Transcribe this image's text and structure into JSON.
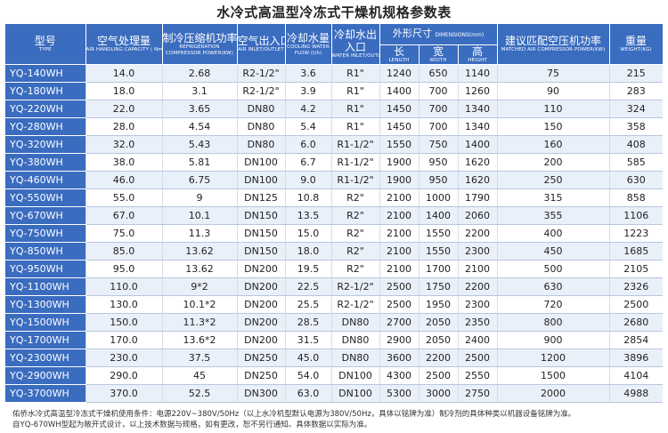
{
  "title": "水冷式高温型冷冻式干燥机规格参数表",
  "headers": {
    "model": {
      "cn": "型号",
      "en": "TYPE"
    },
    "capacity": {
      "cn": "空气处理量",
      "en": "AIR HANDLING CAPACITY ( Nm³/min)"
    },
    "power": {
      "cn": "制冷压缩机功率",
      "en": "REFRIGERATION COMPRESSOR POWER(KW)"
    },
    "air_inlet": {
      "cn": "空气出入口",
      "en": "AIR INLET/OUTLET"
    },
    "cooling_flow": {
      "cn": "冷却水量",
      "en": "COOLING WATER FLOW (t/h)"
    },
    "water_inlet": {
      "cn": "冷却水出入口",
      "en": "WATER INLET/OUTLET"
    },
    "dimensions": {
      "cn": "外形尺寸",
      "en": "DIMENSIONS(mm)"
    },
    "length": {
      "cn": "长",
      "en": "LENGTH"
    },
    "width": {
      "cn": "宽",
      "en": "WIDTH"
    },
    "height": {
      "cn": "高",
      "en": "HEIGHT"
    },
    "matched_power": {
      "cn": "建议匹配空压机功率",
      "en": "MATCHED AIR COMPRESSOR POWER(KW)"
    },
    "weight": {
      "cn": "重量",
      "en": "WEIGHT(KG)"
    }
  },
  "rows": [
    [
      "YQ-140WH",
      "14.0",
      "2.68",
      "R2-1/2\"",
      "3.6",
      "R1\"",
      "1240",
      "650",
      "1140",
      "75",
      "215"
    ],
    [
      "YQ-180WH",
      "18.0",
      "3.1",
      "R2-1/2\"",
      "3.9",
      "R1\"",
      "1400",
      "700",
      "1260",
      "90",
      "283"
    ],
    [
      "YQ-220WH",
      "22.0",
      "3.65",
      "DN80",
      "4.2",
      "R1\"",
      "1450",
      "700",
      "1340",
      "110",
      "324"
    ],
    [
      "YQ-280WH",
      "28.0",
      "4.54",
      "DN80",
      "5.4",
      "R1\"",
      "1450",
      "700",
      "1340",
      "150",
      "358"
    ],
    [
      "YQ-320WH",
      "32.0",
      "5.43",
      "DN80",
      "6.0",
      "R1-1/2\"",
      "1550",
      "750",
      "1400",
      "160",
      "408"
    ],
    [
      "YQ-380WH",
      "38.0",
      "5.81",
      "DN100",
      "6.7",
      "R1-1/2\"",
      "1900",
      "950",
      "1620",
      "200",
      "585"
    ],
    [
      "YQ-460WH",
      "46.0",
      "6.75",
      "DN100",
      "9.0",
      "R1-1/2\"",
      "1900",
      "950",
      "1620",
      "250",
      "630"
    ],
    [
      "YQ-550WH",
      "55.0",
      "9",
      "DN125",
      "10.8",
      "R2\"",
      "2100",
      "1000",
      "1790",
      "315",
      "858"
    ],
    [
      "YQ-670WH",
      "67.0",
      "10.1",
      "DN150",
      "13.5",
      "R2\"",
      "2100",
      "1400",
      "2060",
      "355",
      "1106"
    ],
    [
      "YQ-750WH",
      "75.0",
      "11.3",
      "DN150",
      "15.0",
      "R2\"",
      "2100",
      "1550",
      "2200",
      "400",
      "1223"
    ],
    [
      "YQ-850WH",
      "85.0",
      "13.62",
      "DN150",
      "18.0",
      "R2\"",
      "2100",
      "1550",
      "2300",
      "450",
      "1685"
    ],
    [
      "YQ-950WH",
      "95.0",
      "13.62",
      "DN200",
      "19.5",
      "R2\"",
      "2100",
      "1700",
      "2100",
      "500",
      "2105"
    ],
    [
      "YQ-1100WH",
      "110.0",
      "9*2",
      "DN200",
      "22.5",
      "R2-1/2\"",
      "2500",
      "1750",
      "2200",
      "630",
      "2326"
    ],
    [
      "YQ-1300WH",
      "130.0",
      "10.1*2",
      "DN200",
      "25.5",
      "R2-1/2\"",
      "2500",
      "1950",
      "2300",
      "720",
      "2500"
    ],
    [
      "YQ-1500WH",
      "150.0",
      "11.3*2",
      "DN200",
      "28.5",
      "DN80",
      "2700",
      "2050",
      "2350",
      "800",
      "2680"
    ],
    [
      "YQ-1700WH",
      "170.0",
      "13.6*2",
      "DN200",
      "31.5",
      "DN80",
      "2900",
      "2050",
      "2400",
      "900",
      "2854"
    ],
    [
      "YQ-2300WH",
      "230.0",
      "37.5",
      "DN250",
      "45.0",
      "DN80",
      "3600",
      "2200",
      "2500",
      "1200",
      "3896"
    ],
    [
      "YQ-2900WH",
      "290.0",
      "45",
      "DN250",
      "54.0",
      "DN100",
      "4300",
      "2500",
      "2550",
      "1500",
      "4104"
    ],
    [
      "YQ-3700WH",
      "370.0",
      "52.5",
      "DN300",
      "63.0",
      "DN100",
      "5300",
      "3000",
      "2750",
      "2000",
      "4988"
    ]
  ],
  "footnotes": [
    "佑侨水冷式高温型冷冻式干燥机使用条件：电源220V~380V/50Hz（以上水冷机型默认电源为380V/50Hz，具体以铭牌为准）制冷剂的具体种类以机器设备铭牌为准。",
    "自YQ-670WH型起为敞开式设计，以上技术数据与规格，如有更改，恕不另行通知。具体数据以实际为准。"
  ]
}
